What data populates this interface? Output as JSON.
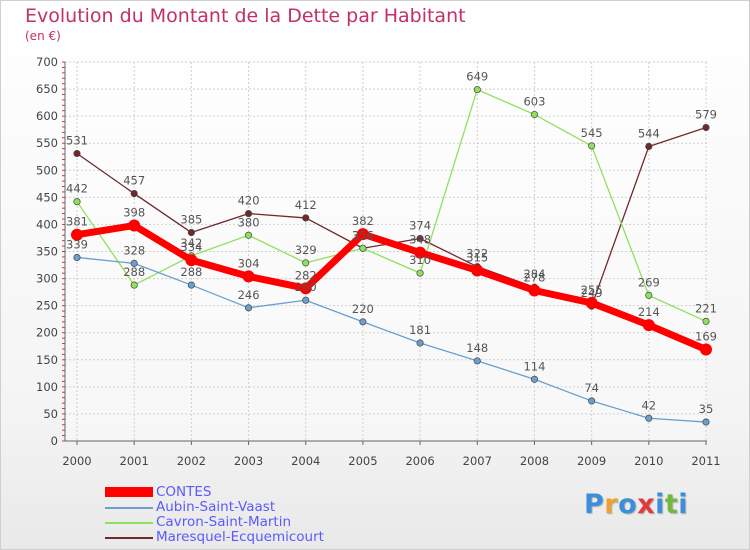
{
  "chart_data": {
    "type": "line",
    "title": "Evolution du Montant de la Dette par Habitant",
    "subtitle": "(en €)",
    "x": [
      "2000",
      "2001",
      "2002",
      "2003",
      "2004",
      "2005",
      "2006",
      "2007",
      "2008",
      "2009",
      "2010",
      "2011"
    ],
    "ylim": [
      0,
      700
    ],
    "yticks": [
      "0",
      "50",
      "100",
      "150",
      "200",
      "250",
      "300",
      "350",
      "400",
      "450",
      "500",
      "550",
      "600",
      "650",
      "700"
    ],
    "grid": true,
    "legend_position": "bottom-left",
    "series": [
      {
        "name": "CONTES",
        "color": "#ff0000",
        "values": [
          381,
          398,
          334,
          304,
          282,
          382,
          348,
          315,
          278,
          255,
          214,
          169
        ],
        "labels": [
          "381",
          "398",
          "334",
          "304",
          "282",
          "382",
          "348",
          "315",
          "278",
          "255",
          "214",
          "169"
        ]
      },
      {
        "name": "Aubin-Saint-Vaast",
        "color": "#6a9fce",
        "values": [
          339,
          328,
          288,
          246,
          260,
          220,
          181,
          148,
          114,
          74,
          42,
          35
        ],
        "labels": [
          "339",
          "328",
          "288",
          "246",
          "260",
          "220",
          "181",
          "148",
          "114",
          "74",
          "42",
          "35"
        ]
      },
      {
        "name": "Cavron-Saint-Martin",
        "color": "#90e060",
        "values": [
          442,
          288,
          342,
          380,
          329,
          356,
          310,
          649,
          603,
          545,
          269,
          221
        ],
        "labels": [
          "442",
          "288",
          "342",
          "380",
          "329",
          "356",
          "310",
          "649",
          "603",
          "545",
          "269",
          "221"
        ]
      },
      {
        "name": "Maresquel-Ecquemicourt",
        "color": "#6e2a2a",
        "values": [
          531,
          457,
          385,
          420,
          412,
          356,
          374,
          322,
          284,
          249,
          544,
          579
        ],
        "labels": [
          "531",
          "457",
          "385",
          "420",
          "412",
          "356",
          "374",
          "322",
          "284",
          "249",
          "544",
          "579"
        ]
      }
    ]
  },
  "logo": {
    "letters": [
      "P",
      "r",
      "o",
      "x",
      "i",
      "t",
      "i"
    ],
    "colors": [
      "#3b8fd8",
      "#f0a030",
      "#3b8fd8",
      "#e03a3a",
      "#3b8fd8",
      "#70b840",
      "#3b8fd8"
    ]
  }
}
